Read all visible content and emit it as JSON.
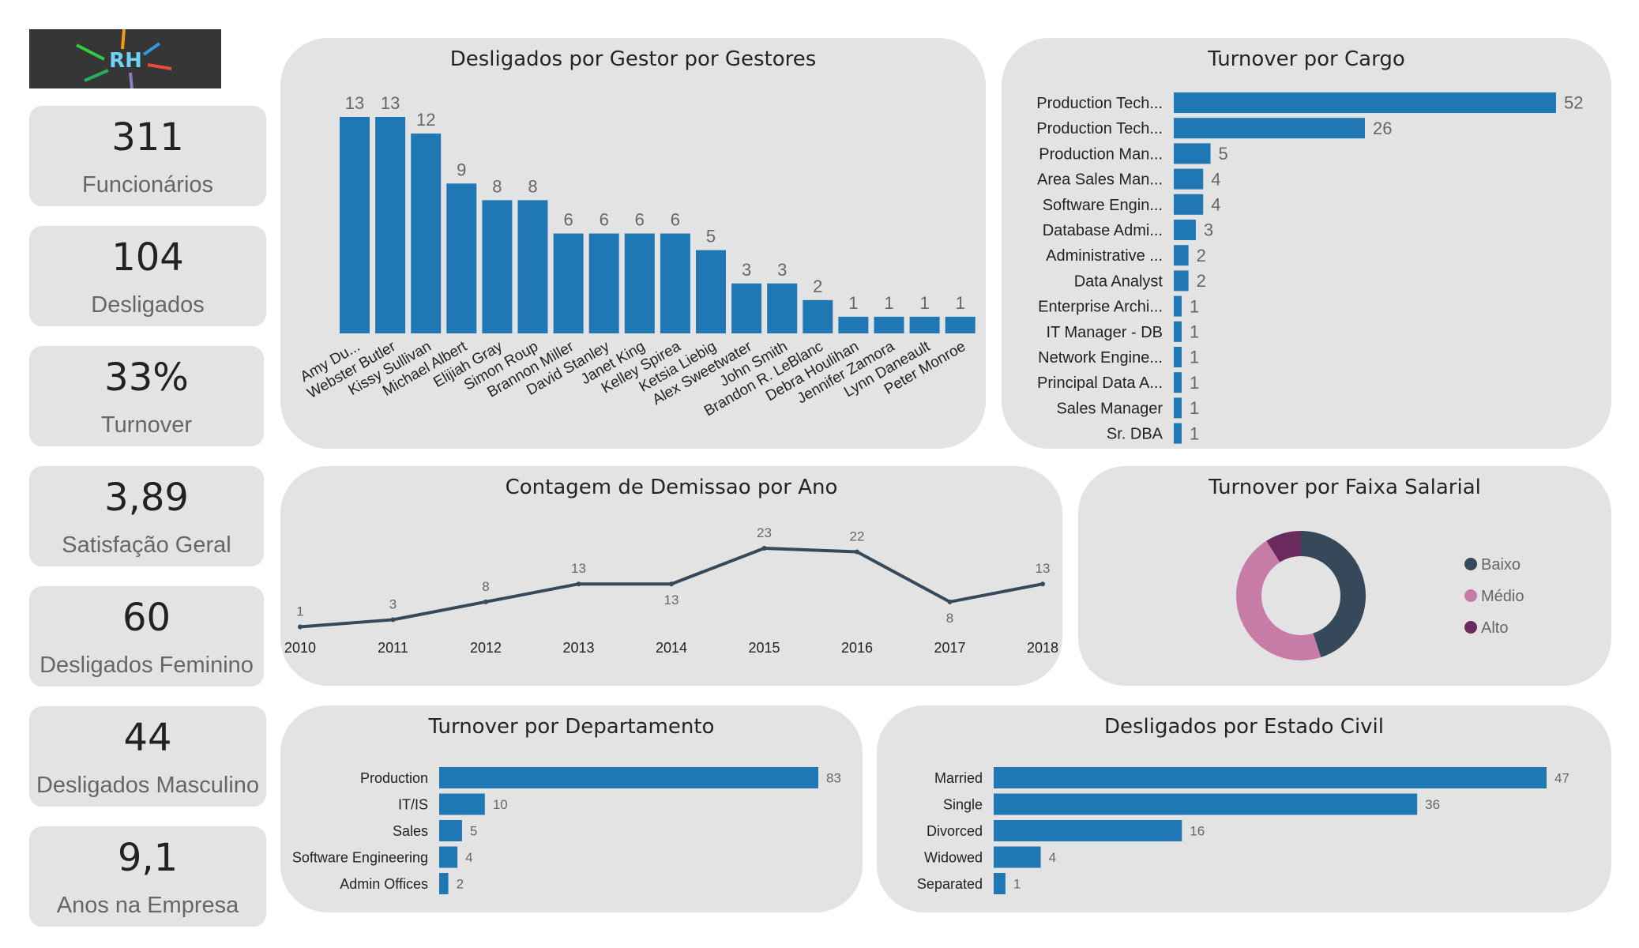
{
  "logo": {
    "text": "RH"
  },
  "kpis": [
    {
      "value": "311",
      "label": "Funcionários"
    },
    {
      "value": "104",
      "label": "Desligados"
    },
    {
      "value": "33%",
      "label": "Turnover"
    },
    {
      "value": "3,89",
      "label": "Satisfação Geral"
    },
    {
      "value": "60",
      "label": "Desligados Feminino"
    },
    {
      "value": "44",
      "label": "Desligados Masculino"
    },
    {
      "value": "9,1",
      "label": "Anos na Empresa"
    }
  ],
  "colors": {
    "bar": "#1f77b4",
    "line": "#35495a",
    "baixo": "#35495a",
    "medio": "#c77ca8",
    "alto": "#6b2a5e",
    "panel": "#e3e3e3"
  },
  "chart_data": [
    {
      "id": "gestor",
      "type": "bar",
      "title": "Desligados por Gestor por Gestores",
      "categories": [
        "Amy Du...",
        "Webster Butler",
        "Kissy Sullivan",
        "Michael Albert",
        "Elijiah Gray",
        "Simon Roup",
        "Brannon Miller",
        "David Stanley",
        "Janet King",
        "Kelley Spirea",
        "Ketsia Liebig",
        "Alex Sweetwater",
        "John Smith",
        "Brandon R. LeBlanc",
        "Debra Houlihan",
        "Jennifer Zamora",
        "Lynn Daneault",
        "Peter Monroe"
      ],
      "values": [
        13,
        13,
        12,
        9,
        8,
        8,
        6,
        6,
        6,
        6,
        5,
        3,
        3,
        2,
        1,
        1,
        1,
        1
      ],
      "ylim": [
        0,
        13
      ]
    },
    {
      "id": "cargo",
      "type": "bar",
      "orientation": "horizontal",
      "title": "Turnover por Cargo",
      "categories": [
        "Production Tech...",
        "Production Tech...",
        "Production Man...",
        "Area Sales Man...",
        "Software Engin...",
        "Database Admi...",
        "Administrative ...",
        "Data Analyst",
        "Enterprise Archi...",
        "IT Manager - DB",
        "Network Engine...",
        "Principal Data A...",
        "Sales Manager",
        "Sr. DBA"
      ],
      "values": [
        52,
        26,
        5,
        4,
        4,
        3,
        2,
        2,
        1,
        1,
        1,
        1,
        1,
        1
      ]
    },
    {
      "id": "ano",
      "type": "line",
      "title": "Contagem de Demissao por Ano",
      "x": [
        "2010",
        "2011",
        "2012",
        "2013",
        "2014",
        "2015",
        "2016",
        "2017",
        "2018"
      ],
      "values": [
        1,
        3,
        8,
        13,
        13,
        23,
        22,
        8,
        13
      ],
      "ylim": [
        0,
        23
      ]
    },
    {
      "id": "faixa",
      "type": "pie",
      "variant": "donut",
      "title": "Turnover por Faixa Salarial",
      "labels": [
        "Baixo",
        "Médio",
        "Alto"
      ],
      "values": [
        45,
        46,
        9
      ],
      "colors": [
        "#35495a",
        "#c77ca8",
        "#6b2a5e"
      ],
      "legend": "right"
    },
    {
      "id": "departamento",
      "type": "bar",
      "orientation": "horizontal",
      "title": "Turnover por Departamento",
      "categories": [
        "Production",
        "IT/IS",
        "Sales",
        "Software Engineering",
        "Admin Offices"
      ],
      "values": [
        83,
        10,
        5,
        4,
        2
      ]
    },
    {
      "id": "civil",
      "type": "bar",
      "orientation": "horizontal",
      "title": "Desligados por Estado Civil",
      "categories": [
        "Married",
        "Single",
        "Divorced",
        "Widowed",
        "Separated"
      ],
      "values": [
        47,
        36,
        16,
        4,
        1
      ]
    }
  ]
}
